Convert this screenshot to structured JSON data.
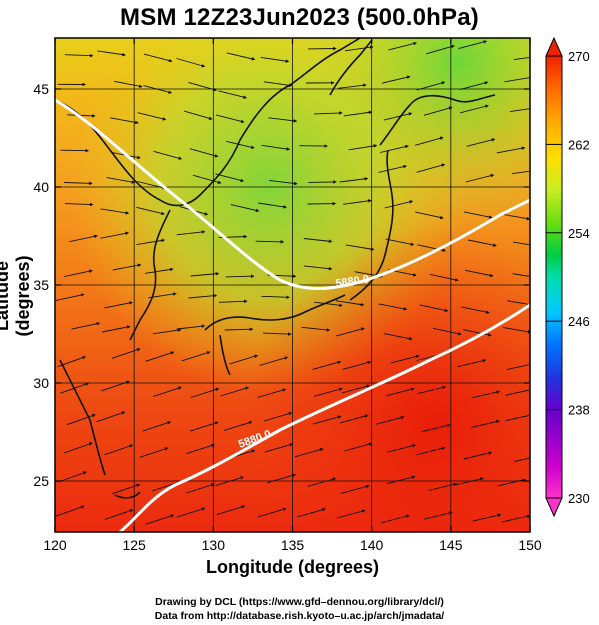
{
  "title": "MSM 12Z23Jun2023 (500.0hPa)",
  "axes": {
    "xlabel": "Longitude (degrees)",
    "ylabel": "Latitude  (degrees)",
    "xticks": [
      120,
      125,
      130,
      135,
      140,
      145,
      150
    ],
    "yticks": [
      25,
      30,
      35,
      40,
      45
    ],
    "xlim": [
      120,
      150
    ],
    "ylim": [
      22.4,
      47.6
    ]
  },
  "colorbar": {
    "min": 230,
    "max": 270,
    "tick_labels": [
      "270",
      "262",
      "254",
      "246",
      "238",
      "230"
    ],
    "colors": [
      "#ff33cc",
      "#cc00cc",
      "#6600cc",
      "#2233dd",
      "#0077ff",
      "#00c8ff",
      "#00ddaa",
      "#00cc44",
      "#66dd11",
      "#ccee22",
      "#ffdd00",
      "#ffaa00",
      "#ff6600",
      "#ee2200"
    ]
  },
  "contours": [
    {
      "label": "5880.0"
    },
    {
      "label": "5880.0"
    }
  ],
  "credits": {
    "line1": "Drawing by DCL (https://www.gfd–dennou.org/library/dcl/)",
    "line2": "Data from http://database.rish.kyoto–u.ac.jp/arch/jmadata/"
  }
}
